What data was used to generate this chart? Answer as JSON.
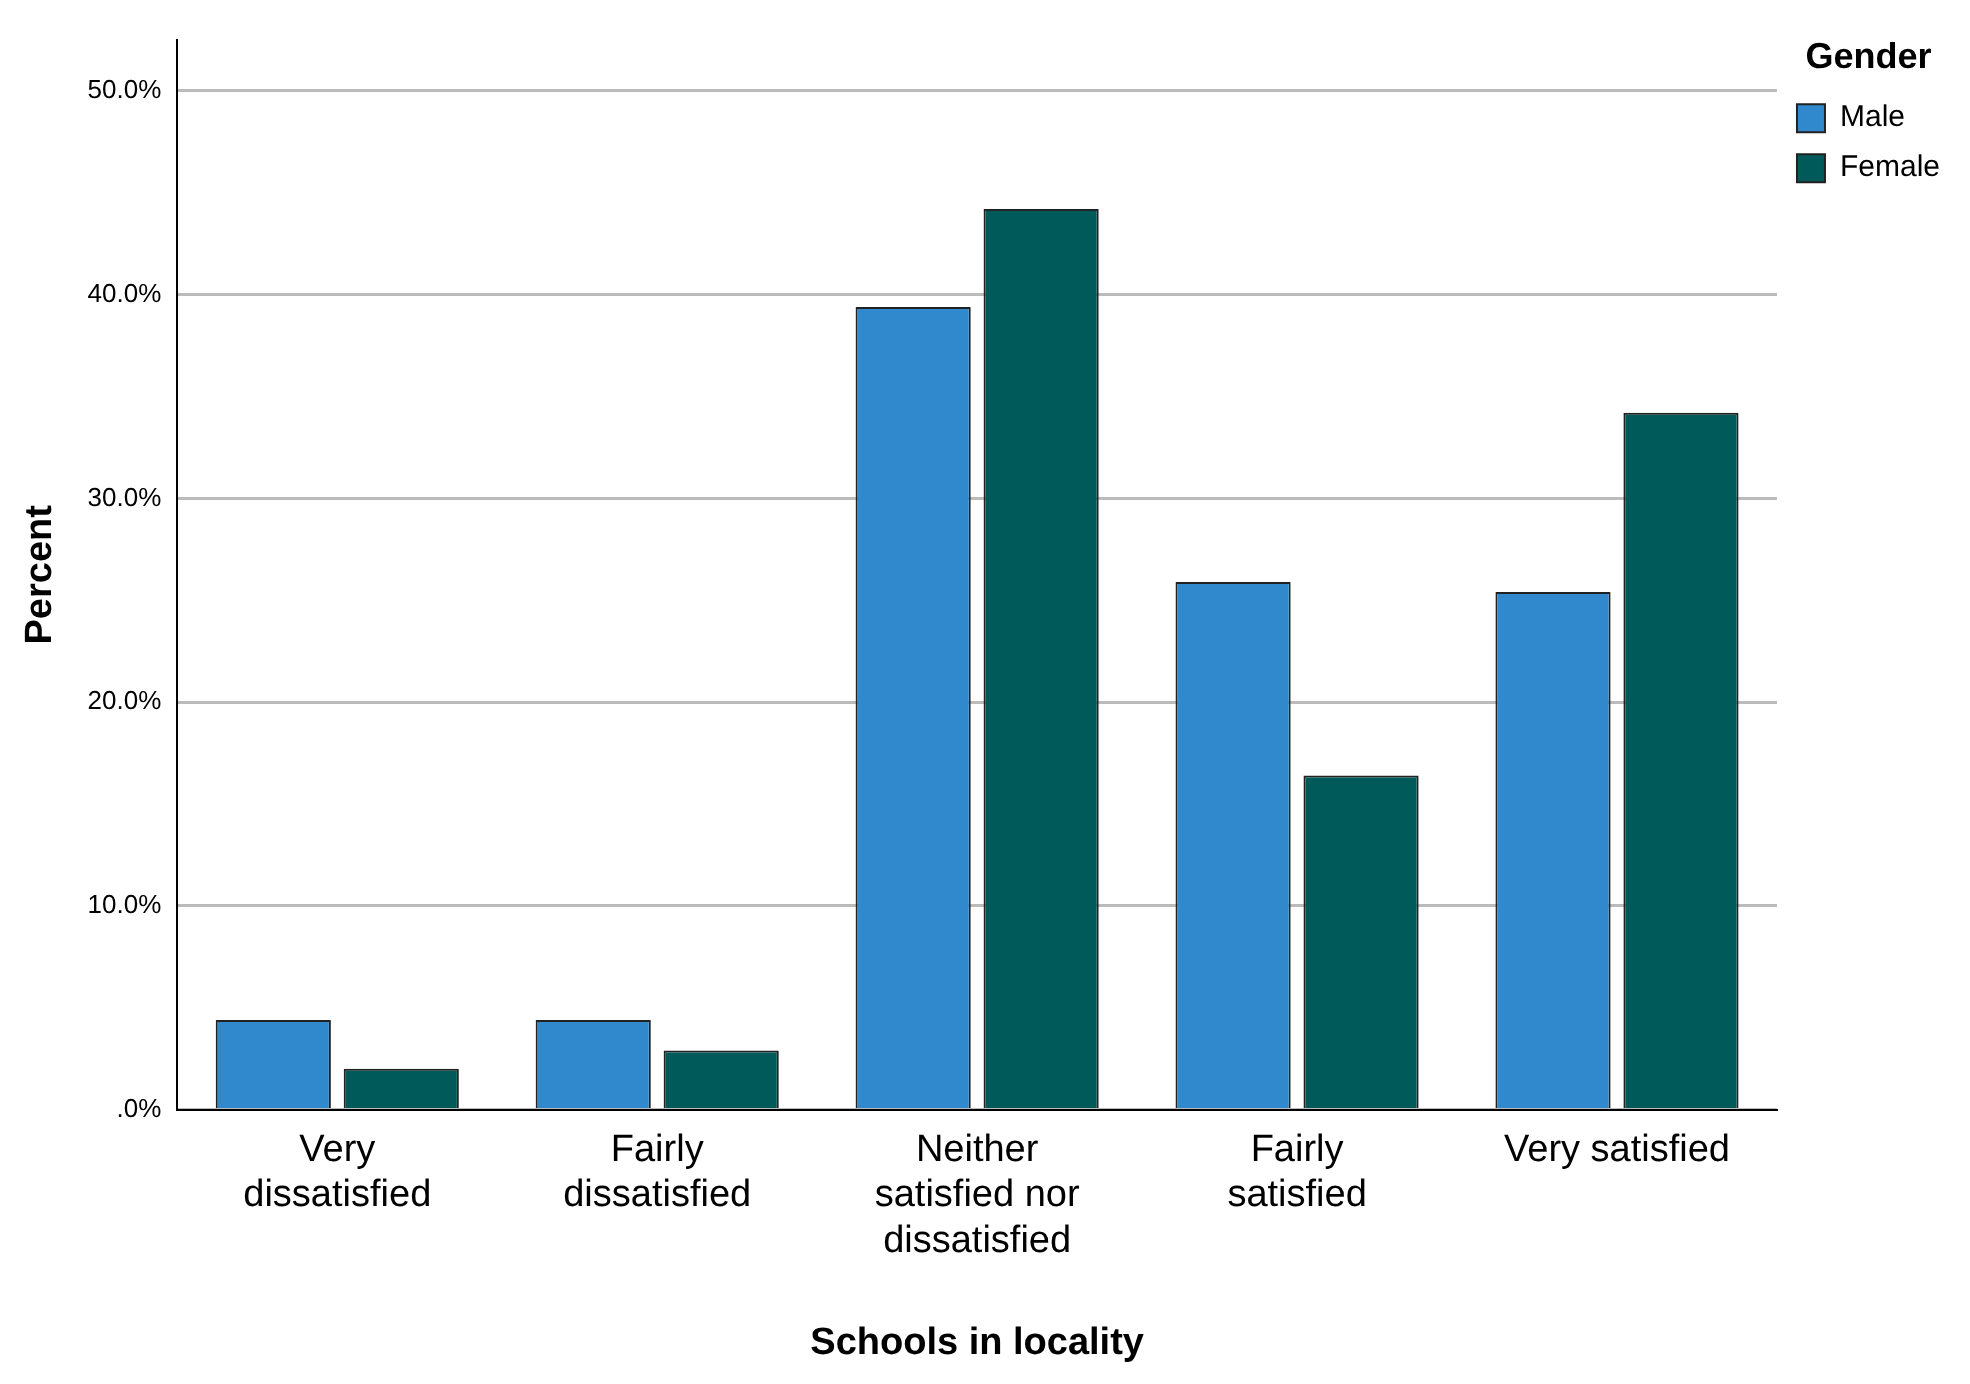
{
  "chart_data": {
    "type": "bar",
    "xlabel": "Schools in locality",
    "ylabel": "Percent",
    "legend_title": "Gender",
    "legend": "right",
    "categories": [
      "Very dissatisfied",
      "Fairly dissatisfied",
      "Neither satisfied nor dissatisfied",
      "Fairly satisfied",
      "Very satisfied"
    ],
    "series": [
      {
        "name": "Male",
        "color": "#3089cc",
        "values": [
          4.4,
          4.4,
          39.4,
          25.9,
          25.4
        ]
      },
      {
        "name": "Female",
        "color": "#015a5a",
        "values": [
          2.0,
          2.9,
          44.2,
          16.4,
          34.2
        ]
      }
    ],
    "ylim": [
      0,
      52.5
    ],
    "yticks": [
      {
        "value": 0,
        "label": ".0%"
      },
      {
        "value": 10,
        "label": "10.0%"
      },
      {
        "value": 20,
        "label": "20.0%"
      },
      {
        "value": 30,
        "label": "30.0%"
      },
      {
        "value": 40,
        "label": "40.0%"
      },
      {
        "value": 50,
        "label": "50.0%"
      }
    ],
    "grid": "y"
  }
}
